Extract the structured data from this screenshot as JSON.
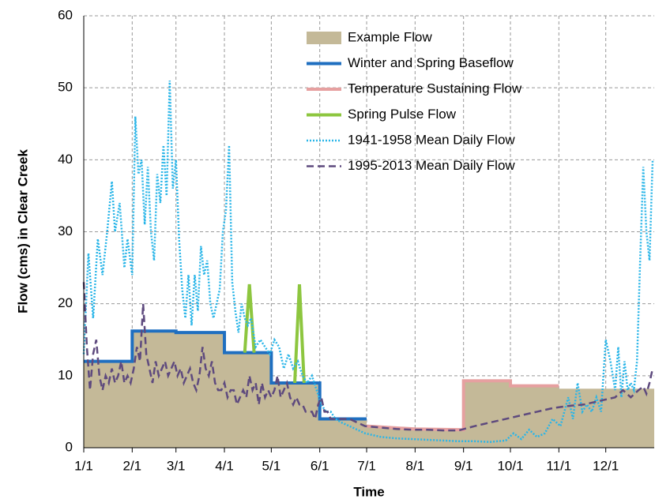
{
  "chart_data": {
    "type": "line",
    "x_label": "Time",
    "y_label": "Flow (cms) in Clear Creek",
    "xlim": [
      0,
      365
    ],
    "ylim": [
      0,
      60
    ],
    "xticks": [
      {
        "value": 0,
        "label": "1/1"
      },
      {
        "value": 31,
        "label": "2/1"
      },
      {
        "value": 59,
        "label": "3/1"
      },
      {
        "value": 90,
        "label": "4/1"
      },
      {
        "value": 120,
        "label": "5/1"
      },
      {
        "value": 151,
        "label": "6/1"
      },
      {
        "value": 181,
        "label": "7/1"
      },
      {
        "value": 212,
        "label": "8/1"
      },
      {
        "value": 243,
        "label": "9/1"
      },
      {
        "value": 273,
        "label": "10/1"
      },
      {
        "value": 304,
        "label": "11/1"
      },
      {
        "value": 334,
        "label": "12/1"
      }
    ],
    "yticks": [
      0,
      10,
      20,
      30,
      40,
      50,
      60
    ],
    "grid": true,
    "legend": "top",
    "series": [
      {
        "name": "Example Flow",
        "color": "#c4b998",
        "style": "area",
        "x": [
          0,
          31,
          31,
          59,
          59,
          90,
          90,
          120,
          120,
          151,
          151,
          181,
          181,
          212,
          243,
          243,
          273,
          273,
          304,
          304,
          365
        ],
        "values": [
          12,
          12,
          16.2,
          16.2,
          16,
          16,
          13.2,
          13.2,
          9,
          9,
          4,
          4,
          3,
          2.6,
          2.5,
          9.3,
          9.3,
          8.6,
          8.6,
          8.2,
          8.2
        ]
      },
      {
        "name": "Winter and Spring Baseflow",
        "color": "#1f6fc0",
        "style": "solid",
        "x": [
          0,
          31,
          31,
          59,
          59,
          90,
          90,
          120,
          120,
          151,
          151,
          181
        ],
        "values": [
          12,
          12,
          16.2,
          16.2,
          16,
          16,
          13.2,
          13.2,
          9,
          9,
          4,
          4
        ]
      },
      {
        "name": "Temperature Sustaining Flow",
        "color": "#e6a0a0",
        "style": "solid",
        "x": [
          181,
          212,
          243,
          243,
          273,
          273,
          304
        ],
        "values": [
          3,
          2.6,
          2.5,
          9.3,
          9.3,
          8.6,
          8.6
        ]
      },
      {
        "name": "Spring Pulse Flow",
        "color": "#8dc63f",
        "style": "solid",
        "x": [
          103,
          106,
          109,
          120,
          135,
          138,
          141
        ],
        "values": [
          13.2,
          22.7,
          13.2,
          null,
          9,
          22.7,
          9
        ]
      },
      {
        "name": "1941-1958 Mean Daily Flow",
        "color": "#29b5e8",
        "style": "dotted",
        "x": [
          0,
          3,
          6,
          9,
          12,
          15,
          18,
          20,
          23,
          26,
          28,
          31,
          33,
          35,
          37,
          39,
          41,
          43,
          45,
          47,
          49,
          51,
          53,
          55,
          57,
          59,
          61,
          63,
          65,
          67,
          69,
          71,
          73,
          75,
          77,
          79,
          81,
          83,
          85,
          87,
          89,
          91,
          93,
          95,
          97,
          99,
          101,
          103,
          105,
          107,
          110,
          113,
          116,
          119,
          122,
          125,
          128,
          131,
          134,
          137,
          140,
          143,
          146,
          149,
          152,
          155,
          158,
          161,
          165,
          170,
          175,
          180,
          190,
          200,
          210,
          220,
          230,
          240,
          250,
          260,
          270,
          275,
          280,
          285,
          290,
          295,
          300,
          305,
          310,
          313,
          316,
          319,
          322,
          325,
          328,
          331,
          334,
          337,
          340,
          342,
          344,
          346,
          348,
          350,
          352,
          354,
          356,
          358,
          360,
          362,
          364
        ],
        "values": [
          13,
          27,
          18,
          29,
          24,
          30,
          37,
          30,
          34,
          25,
          29,
          24,
          46,
          38,
          40,
          31,
          39,
          30,
          26,
          38,
          34,
          42,
          35,
          51,
          36,
          40,
          29,
          22,
          18,
          24,
          17,
          24,
          19,
          28,
          24,
          26,
          20,
          18,
          20,
          22,
          30,
          33,
          42,
          23,
          19,
          16,
          20,
          18,
          17,
          18,
          14,
          15,
          14,
          13,
          15,
          14,
          11,
          13,
          11,
          12,
          10,
          9,
          10,
          8,
          6,
          5,
          5,
          4,
          3.5,
          3,
          2.5,
          2,
          1.5,
          1.3,
          1.2,
          1.1,
          1,
          0.9,
          0.9,
          0.8,
          1,
          2,
          1.2,
          2.5,
          1.5,
          2,
          4,
          3,
          7,
          4,
          9,
          5,
          6,
          5,
          7,
          5,
          15,
          12,
          8,
          14,
          7,
          12,
          8,
          9,
          8,
          12,
          26,
          39,
          30,
          26,
          40
        ]
      },
      {
        "name": "1995-2013 Mean Daily Flow",
        "color": "#5e4a7e",
        "style": "dashed",
        "x": [
          0,
          2,
          4,
          6,
          8,
          10,
          12,
          14,
          16,
          18,
          20,
          22,
          24,
          26,
          28,
          30,
          32,
          34,
          36,
          38,
          40,
          42,
          44,
          46,
          48,
          50,
          52,
          54,
          56,
          58,
          60,
          62,
          64,
          66,
          68,
          70,
          72,
          74,
          76,
          78,
          80,
          82,
          84,
          86,
          88,
          90,
          92,
          94,
          96,
          98,
          100,
          102,
          104,
          106,
          108,
          110,
          112,
          114,
          116,
          118,
          120,
          122,
          124,
          126,
          128,
          130,
          132,
          134,
          136,
          138,
          140,
          142,
          144,
          146,
          148,
          150,
          152,
          154,
          156,
          158,
          162,
          166,
          170,
          175,
          180,
          190,
          200,
          210,
          220,
          230,
          240,
          250,
          260,
          270,
          280,
          290,
          300,
          310,
          320,
          330,
          340,
          345,
          350,
          355,
          358,
          360,
          362,
          364
        ],
        "values": [
          23,
          14,
          8,
          13,
          15,
          10,
          8,
          10,
          9,
          11,
          9,
          10,
          12,
          9,
          10,
          9,
          11,
          14,
          12,
          20,
          13,
          11,
          9,
          12,
          10,
          11,
          12,
          10,
          11,
          12,
          10,
          11,
          9,
          10,
          11,
          9,
          8,
          10,
          14,
          11,
          10,
          12,
          9,
          8,
          8,
          9,
          7,
          8,
          8,
          6,
          7,
          8,
          7,
          10,
          8,
          9,
          6,
          9,
          7,
          8,
          7,
          8,
          10,
          7,
          8,
          9,
          7,
          6,
          7,
          6,
          6,
          5,
          5,
          5,
          4,
          6,
          7,
          5,
          5,
          4,
          4,
          4,
          4,
          3.5,
          3,
          2.8,
          2.6,
          2.5,
          2.5,
          2.4,
          2.4,
          3,
          3.5,
          4,
          4.5,
          5,
          5.5,
          5.8,
          6,
          6.5,
          7,
          8,
          7,
          8,
          8.5,
          7.5,
          9,
          11
        ]
      }
    ]
  }
}
